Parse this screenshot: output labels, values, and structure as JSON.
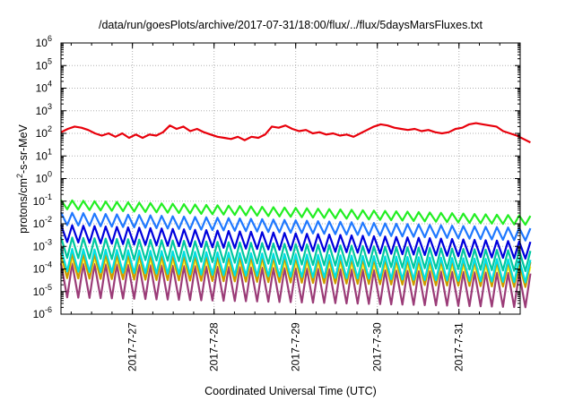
{
  "chart_data": {
    "type": "line",
    "title": "/data/run/goesPlots/archive/2017-07-31/18:00/flux/../flux/5daysMarsFluxes.txt",
    "xlabel": "Coordinated Universal Time (UTC)",
    "ylabel": "protons/cm2-s-sr-MeV",
    "y_scale": "log",
    "ylim": [
      1e-06,
      1000000.0
    ],
    "y_ticks": [
      {
        "value": -6,
        "base": "10",
        "exp": "-6"
      },
      {
        "value": -5,
        "base": "10",
        "exp": "-5"
      },
      {
        "value": -4,
        "base": "10",
        "exp": "-4"
      },
      {
        "value": -3,
        "base": "10",
        "exp": "-3"
      },
      {
        "value": -2,
        "base": "10",
        "exp": "-2"
      },
      {
        "value": -1,
        "base": "10",
        "exp": "-1"
      },
      {
        "value": 0,
        "base": "10",
        "exp": "0"
      },
      {
        "value": 1,
        "base": "10",
        "exp": "1"
      },
      {
        "value": 2,
        "base": "10",
        "exp": "2"
      },
      {
        "value": 3,
        "base": "10",
        "exp": "3"
      },
      {
        "value": 4,
        "base": "10",
        "exp": "4"
      },
      {
        "value": 5,
        "base": "10",
        "exp": "5"
      },
      {
        "value": 6,
        "base": "10",
        "exp": "6"
      }
    ],
    "xlim": [
      "2017-07-26 03:00",
      "2017-07-31 18:00"
    ],
    "x_ticks": [
      "2017-7-27",
      "2017-7-28",
      "2017-7-29",
      "2017-7-30",
      "2017-7-31"
    ],
    "grid": true,
    "series": [
      {
        "color": "#e8000b",
        "sawtooth": false,
        "x_hours": [
          0,
          2,
          4,
          6,
          8,
          10,
          12,
          14,
          16,
          18,
          20,
          22,
          24,
          26,
          28,
          30,
          32,
          34,
          36,
          38,
          40,
          42,
          44,
          46,
          48,
          50,
          52,
          54,
          56,
          58,
          60,
          62,
          64,
          66,
          68,
          70,
          72,
          74,
          76,
          78,
          80,
          82,
          84,
          86,
          88,
          90,
          92,
          94,
          96,
          98,
          100,
          102,
          104,
          106,
          108,
          110,
          112,
          114,
          116,
          118,
          120,
          122,
          124,
          126,
          128,
          130,
          132,
          134,
          136,
          138
        ],
        "log10_values": [
          2.05,
          2.2,
          2.3,
          2.25,
          2.15,
          2.0,
          1.9,
          2.0,
          1.85,
          2.0,
          1.8,
          1.95,
          1.8,
          1.95,
          1.9,
          2.05,
          2.35,
          2.2,
          2.3,
          2.1,
          2.2,
          2.05,
          1.95,
          1.85,
          1.8,
          1.75,
          1.85,
          1.7,
          1.85,
          1.8,
          1.95,
          2.3,
          2.25,
          2.35,
          2.2,
          2.1,
          2.15,
          2.0,
          2.05,
          1.95,
          2.0,
          1.9,
          1.95,
          1.85,
          2.0,
          2.15,
          2.3,
          2.4,
          2.35,
          2.25,
          2.2,
          2.15,
          2.2,
          2.1,
          2.15,
          2.05,
          2.0,
          2.05,
          2.2,
          2.25,
          2.4,
          2.45,
          2.4,
          2.35,
          2.3,
          2.1,
          2.0,
          1.9,
          1.75,
          1.6
        ]
      },
      {
        "color": "#22ee22",
        "sawtooth": true,
        "x_hours": [
          0,
          138
        ],
        "log10_values": [
          -0.95,
          -1.65
        ],
        "teeth": 42,
        "depth": 0.4
      },
      {
        "color": "#1f78ff",
        "sawtooth": true,
        "x_hours": [
          0,
          138
        ],
        "log10_values": [
          -1.5,
          -2.2
        ],
        "teeth": 42,
        "depth": 0.55
      },
      {
        "color": "#0000dd",
        "sawtooth": true,
        "x_hours": [
          0,
          138
        ],
        "log10_values": [
          -2.05,
          -2.8
        ],
        "teeth": 42,
        "depth": 0.75
      },
      {
        "color": "#00c8a0",
        "sawtooth": true,
        "x_hours": [
          0,
          138
        ],
        "log10_values": [
          -2.6,
          -3.2
        ],
        "teeth": 42,
        "depth": 0.9
      },
      {
        "color": "#00e0e0",
        "sawtooth": true,
        "x_hours": [
          0,
          138
        ],
        "log10_values": [
          -3.1,
          -3.6
        ],
        "teeth": 42,
        "depth": 1.0
      },
      {
        "color": "#cc9900",
        "sawtooth": true,
        "x_hours": [
          0,
          138
        ],
        "log10_values": [
          -3.3,
          -3.7
        ],
        "teeth": 42,
        "depth": 1.1
      },
      {
        "color": "#ffff33",
        "sawtooth": true,
        "x_hours": [
          0,
          138
        ],
        "log10_values": [
          -3.5,
          -3.9
        ],
        "teeth": 42,
        "depth": 0.9
      },
      {
        "color": "#9b3c78",
        "sawtooth": true,
        "x_hours": [
          0,
          138
        ],
        "log10_values": [
          -3.75,
          -4.2
        ],
        "teeth": 42,
        "depth": 1.5
      }
    ]
  }
}
